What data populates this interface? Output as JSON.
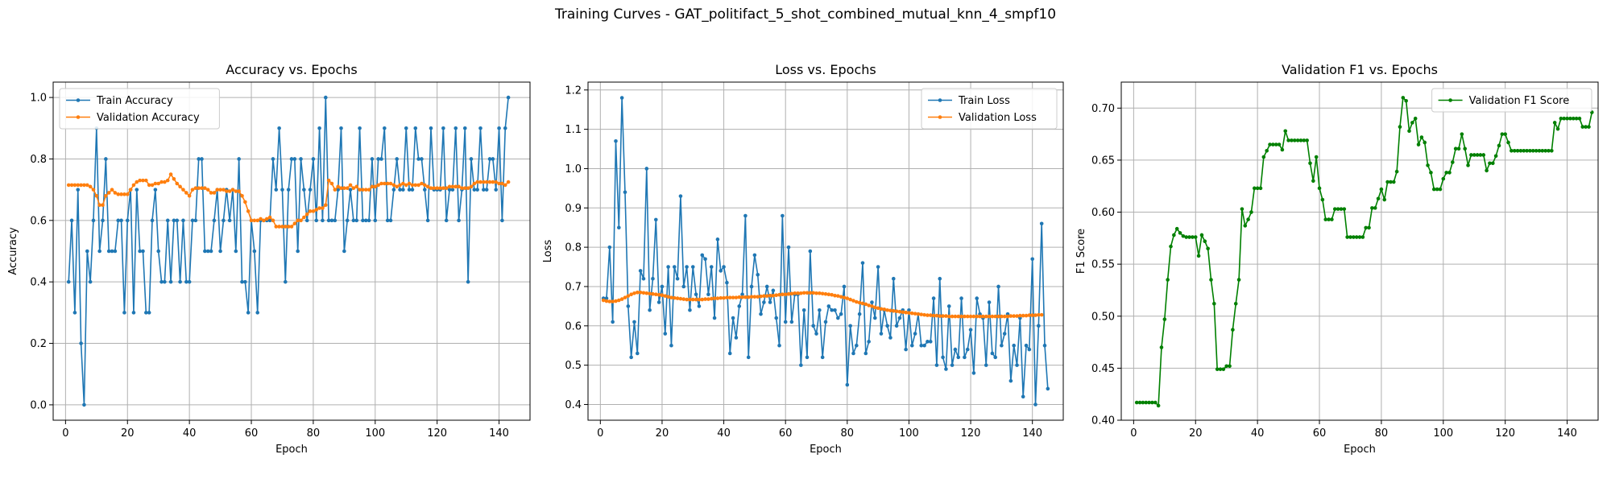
{
  "suptitle": "Training Curves - GAT_politifact_5_shot_combined_mutual_knn_4_smpf10",
  "chart_data": [
    {
      "type": "line",
      "title": "Accuracy vs. Epochs",
      "xlabel": "Epoch",
      "ylabel": "Accuracy",
      "xlim": [
        -4,
        150
      ],
      "ylim": [
        -0.05,
        1.05
      ],
      "xticks": [
        0,
        20,
        40,
        60,
        80,
        100,
        120,
        140
      ],
      "yticks": [
        0.0,
        0.2,
        0.4,
        0.6,
        0.8,
        1.0
      ],
      "ytick_labels": [
        "0.0",
        "0.2",
        "0.4",
        "0.6",
        "0.8",
        "1.0"
      ],
      "grid": true,
      "legend": "upper left",
      "series": [
        {
          "name": "Train Accuracy",
          "color": "#1f77b4",
          "x_start": 1,
          "values": [
            0.4,
            0.6,
            0.3,
            0.7,
            0.2,
            0.0,
            0.5,
            0.4,
            0.6,
            0.9,
            0.5,
            0.6,
            0.8,
            0.5,
            0.5,
            0.5,
            0.6,
            0.6,
            0.3,
            0.6,
            0.7,
            0.3,
            0.7,
            0.5,
            0.5,
            0.3,
            0.3,
            0.6,
            0.7,
            0.5,
            0.4,
            0.4,
            0.6,
            0.4,
            0.6,
            0.6,
            0.4,
            0.6,
            0.4,
            0.4,
            0.6,
            0.6,
            0.8,
            0.8,
            0.5,
            0.5,
            0.5,
            0.6,
            0.7,
            0.5,
            0.6,
            0.7,
            0.6,
            0.7,
            0.5,
            0.8,
            0.4,
            0.4,
            0.3,
            0.6,
            0.5,
            0.3,
            0.6,
            0.6,
            0.6,
            0.6,
            0.8,
            0.7,
            0.9,
            0.7,
            0.4,
            0.7,
            0.8,
            0.8,
            0.5,
            0.8,
            0.7,
            0.6,
            0.7,
            0.8,
            0.6,
            0.9,
            0.6,
            1.0,
            0.6,
            0.6,
            0.6,
            0.7,
            0.9,
            0.5,
            0.6,
            0.7,
            0.6,
            0.6,
            0.9,
            0.6,
            0.6,
            0.6,
            0.8,
            0.6,
            0.8,
            0.8,
            0.9,
            0.6,
            0.6,
            0.7,
            0.8,
            0.7,
            0.7,
            0.9,
            0.7,
            0.7,
            0.9,
            0.8,
            0.8,
            0.7,
            0.6,
            0.9,
            0.7,
            0.7,
            0.7,
            0.9,
            0.6,
            0.7,
            0.7,
            0.9,
            0.6,
            0.7,
            0.9,
            0.4,
            0.8,
            0.7,
            0.7,
            0.9,
            0.7,
            0.7,
            0.8,
            0.8,
            0.7,
            0.9,
            0.6,
            0.9,
            1.0
          ]
        },
        {
          "name": "Validation Accuracy",
          "color": "#ff7f0e",
          "x_start": 1,
          "values": [
            0.715,
            0.715,
            0.715,
            0.715,
            0.715,
            0.715,
            0.715,
            0.71,
            0.7,
            0.68,
            0.65,
            0.65,
            0.68,
            0.69,
            0.7,
            0.69,
            0.685,
            0.685,
            0.685,
            0.685,
            0.7,
            0.715,
            0.725,
            0.73,
            0.73,
            0.73,
            0.715,
            0.715,
            0.72,
            0.72,
            0.725,
            0.725,
            0.73,
            0.75,
            0.735,
            0.72,
            0.71,
            0.7,
            0.69,
            0.68,
            0.7,
            0.705,
            0.705,
            0.705,
            0.705,
            0.7,
            0.69,
            0.69,
            0.7,
            0.7,
            0.7,
            0.695,
            0.695,
            0.7,
            0.695,
            0.695,
            0.68,
            0.66,
            0.63,
            0.6,
            0.6,
            0.6,
            0.605,
            0.6,
            0.605,
            0.61,
            0.6,
            0.58,
            0.58,
            0.58,
            0.58,
            0.58,
            0.58,
            0.59,
            0.6,
            0.6,
            0.61,
            0.62,
            0.63,
            0.63,
            0.635,
            0.64,
            0.64,
            0.65,
            0.73,
            0.72,
            0.7,
            0.71,
            0.705,
            0.705,
            0.705,
            0.715,
            0.705,
            0.71,
            0.7,
            0.7,
            0.7,
            0.7,
            0.71,
            0.71,
            0.715,
            0.72,
            0.72,
            0.72,
            0.72,
            0.715,
            0.71,
            0.715,
            0.72,
            0.715,
            0.72,
            0.715,
            0.715,
            0.715,
            0.72,
            0.715,
            0.71,
            0.705,
            0.705,
            0.705,
            0.705,
            0.705,
            0.705,
            0.71,
            0.71,
            0.71,
            0.71,
            0.705,
            0.705,
            0.705,
            0.71,
            0.72,
            0.725,
            0.725,
            0.725,
            0.725,
            0.725,
            0.725,
            0.725,
            0.72,
            0.72,
            0.715,
            0.725
          ]
        }
      ]
    },
    {
      "type": "line",
      "title": "Loss vs. Epochs",
      "xlabel": "Epoch",
      "ylabel": "Loss",
      "xlim": [
        -4,
        150
      ],
      "ylim": [
        0.36,
        1.22
      ],
      "xticks": [
        0,
        20,
        40,
        60,
        80,
        100,
        120,
        140
      ],
      "yticks": [
        0.4,
        0.5,
        0.6,
        0.7,
        0.8,
        0.9,
        1.0,
        1.1,
        1.2
      ],
      "ytick_labels": [
        "0.4",
        "0.5",
        "0.6",
        "0.7",
        "0.8",
        "0.9",
        "1.0",
        "1.1",
        "1.2"
      ],
      "grid": true,
      "legend": "upper right",
      "series": [
        {
          "name": "Train Loss",
          "color": "#1f77b4",
          "x_start": 1,
          "values": [
            0.67,
            0.67,
            0.8,
            0.61,
            1.07,
            0.85,
            1.18,
            0.94,
            0.65,
            0.52,
            0.61,
            0.53,
            0.74,
            0.72,
            1.0,
            0.64,
            0.72,
            0.87,
            0.66,
            0.7,
            0.58,
            0.75,
            0.55,
            0.75,
            0.72,
            0.93,
            0.7,
            0.75,
            0.64,
            0.75,
            0.68,
            0.65,
            0.78,
            0.77,
            0.68,
            0.75,
            0.62,
            0.82,
            0.74,
            0.75,
            0.71,
            0.53,
            0.62,
            0.57,
            0.65,
            0.68,
            0.88,
            0.52,
            0.7,
            0.78,
            0.73,
            0.63,
            0.66,
            0.7,
            0.66,
            0.69,
            0.62,
            0.55,
            0.88,
            0.61,
            0.8,
            0.61,
            0.68,
            0.68,
            0.5,
            0.64,
            0.52,
            0.79,
            0.6,
            0.58,
            0.64,
            0.52,
            0.61,
            0.65,
            0.64,
            0.64,
            0.62,
            0.63,
            0.7,
            0.45,
            0.6,
            0.53,
            0.55,
            0.63,
            0.76,
            0.53,
            0.56,
            0.66,
            0.62,
            0.75,
            0.58,
            0.64,
            0.6,
            0.57,
            0.72,
            0.6,
            0.62,
            0.64,
            0.54,
            0.64,
            0.55,
            0.58,
            0.63,
            0.55,
            0.55,
            0.56,
            0.56,
            0.67,
            0.5,
            0.72,
            0.52,
            0.49,
            0.65,
            0.5,
            0.54,
            0.52,
            0.67,
            0.52,
            0.54,
            0.59,
            0.48,
            0.67,
            0.63,
            0.62,
            0.5,
            0.66,
            0.53,
            0.52,
            0.7,
            0.55,
            0.58,
            0.63,
            0.46,
            0.55,
            0.5,
            0.62,
            0.42,
            0.55,
            0.54,
            0.77,
            0.4,
            0.6,
            0.86,
            0.55,
            0.44
          ]
        },
        {
          "name": "Validation Loss",
          "color": "#ff7f0e",
          "x_start": 1,
          "values": [
            0.665,
            0.663,
            0.662,
            0.662,
            0.663,
            0.665,
            0.668,
            0.672,
            0.676,
            0.68,
            0.683,
            0.685,
            0.685,
            0.684,
            0.683,
            0.682,
            0.681,
            0.68,
            0.679,
            0.678,
            0.676,
            0.674,
            0.672,
            0.671,
            0.67,
            0.669,
            0.668,
            0.667,
            0.667,
            0.667,
            0.667,
            0.667,
            0.667,
            0.668,
            0.668,
            0.669,
            0.67,
            0.67,
            0.671,
            0.671,
            0.672,
            0.672,
            0.672,
            0.672,
            0.673,
            0.673,
            0.673,
            0.673,
            0.674,
            0.674,
            0.674,
            0.675,
            0.676,
            0.676,
            0.677,
            0.677,
            0.678,
            0.679,
            0.68,
            0.68,
            0.681,
            0.682,
            0.683,
            0.683,
            0.683,
            0.684,
            0.684,
            0.684,
            0.684,
            0.683,
            0.683,
            0.682,
            0.681,
            0.68,
            0.679,
            0.677,
            0.676,
            0.674,
            0.672,
            0.67,
            0.667,
            0.664,
            0.661,
            0.659,
            0.657,
            0.655,
            0.652,
            0.65,
            0.647,
            0.645,
            0.643,
            0.642,
            0.64,
            0.639,
            0.638,
            0.637,
            0.636,
            0.635,
            0.634,
            0.633,
            0.632,
            0.631,
            0.63,
            0.629,
            0.628,
            0.627,
            0.627,
            0.626,
            0.626,
            0.625,
            0.625,
            0.625,
            0.624,
            0.624,
            0.624,
            0.624,
            0.624,
            0.624,
            0.624,
            0.624,
            0.624,
            0.624,
            0.624,
            0.624,
            0.624,
            0.624,
            0.624,
            0.624,
            0.624,
            0.624,
            0.624,
            0.624,
            0.625,
            0.625,
            0.625,
            0.626,
            0.626,
            0.626,
            0.627,
            0.627,
            0.627,
            0.628,
            0.628
          ]
        }
      ]
    },
    {
      "type": "line",
      "title": "Validation F1 vs. Epochs",
      "xlabel": "Epoch",
      "ylabel": "F1 Score",
      "xlim": [
        -4,
        150
      ],
      "ylim": [
        0.4,
        0.725
      ],
      "xticks": [
        0,
        20,
        40,
        60,
        80,
        100,
        120,
        140
      ],
      "yticks": [
        0.4,
        0.45,
        0.5,
        0.55,
        0.6,
        0.65,
        0.7
      ],
      "ytick_labels": [
        "0.40",
        "0.45",
        "0.50",
        "0.55",
        "0.60",
        "0.65",
        "0.70"
      ],
      "grid": true,
      "legend": "upper right",
      "series": [
        {
          "name": "Validation F1 Score",
          "color": "#008000",
          "x_start": 1,
          "values": [
            0.417,
            0.417,
            0.417,
            0.417,
            0.417,
            0.417,
            0.417,
            0.414,
            0.47,
            0.497,
            0.535,
            0.567,
            0.578,
            0.584,
            0.58,
            0.577,
            0.576,
            0.576,
            0.576,
            0.576,
            0.558,
            0.578,
            0.572,
            0.565,
            0.535,
            0.512,
            0.449,
            0.449,
            0.449,
            0.452,
            0.452,
            0.487,
            0.512,
            0.535,
            0.603,
            0.587,
            0.593,
            0.6,
            0.623,
            0.623,
            0.623,
            0.653,
            0.659,
            0.665,
            0.665,
            0.665,
            0.665,
            0.66,
            0.678,
            0.669,
            0.669,
            0.669,
            0.669,
            0.669,
            0.669,
            0.669,
            0.647,
            0.63,
            0.653,
            0.623,
            0.612,
            0.593,
            0.593,
            0.593,
            0.603,
            0.603,
            0.603,
            0.603,
            0.576,
            0.576,
            0.576,
            0.576,
            0.576,
            0.576,
            0.585,
            0.585,
            0.604,
            0.604,
            0.613,
            0.622,
            0.612,
            0.629,
            0.629,
            0.629,
            0.639,
            0.682,
            0.71,
            0.707,
            0.678,
            0.686,
            0.69,
            0.665,
            0.672,
            0.667,
            0.645,
            0.638,
            0.622,
            0.622,
            0.622,
            0.632,
            0.638,
            0.638,
            0.648,
            0.661,
            0.661,
            0.675,
            0.661,
            0.645,
            0.655,
            0.655,
            0.655,
            0.655,
            0.655,
            0.64,
            0.647,
            0.647,
            0.654,
            0.664,
            0.675,
            0.675,
            0.667,
            0.659,
            0.659,
            0.659,
            0.659,
            0.659,
            0.659,
            0.659,
            0.659,
            0.659,
            0.659,
            0.659,
            0.659,
            0.659,
            0.659,
            0.686,
            0.68,
            0.69,
            0.69,
            0.69,
            0.69,
            0.69,
            0.69,
            0.69,
            0.682,
            0.682,
            0.682,
            0.696
          ]
        }
      ]
    }
  ]
}
